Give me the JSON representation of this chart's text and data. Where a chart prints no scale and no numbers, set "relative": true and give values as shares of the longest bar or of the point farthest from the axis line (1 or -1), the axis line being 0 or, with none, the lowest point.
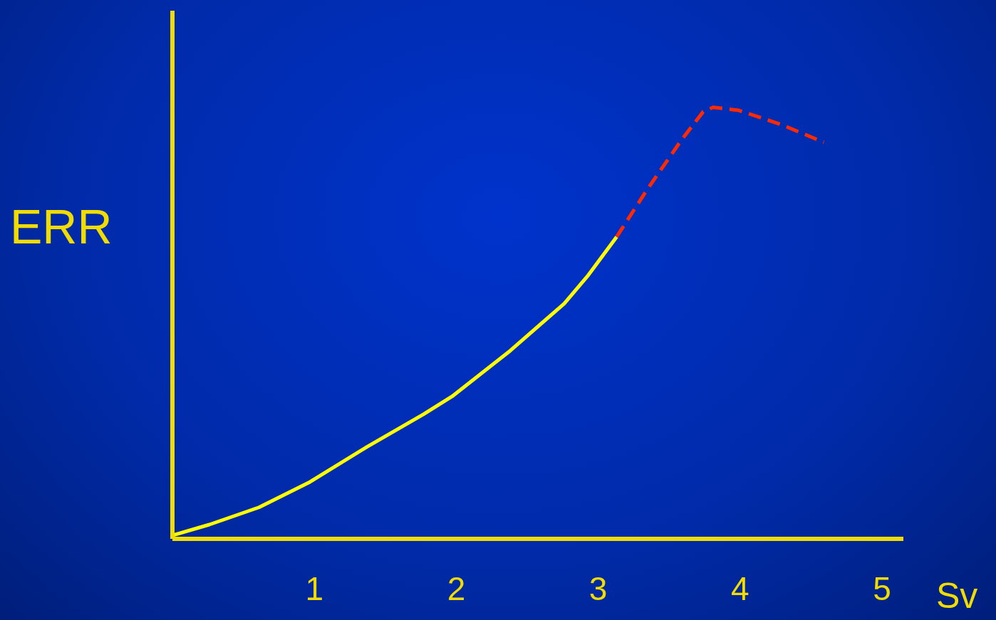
{
  "chart_data": {
    "type": "line",
    "xlabel": "Sv",
    "ylabel": "ERR",
    "relative": true,
    "xlim": [
      0,
      5.15
    ],
    "xticks": [
      1,
      2,
      3,
      4,
      5
    ],
    "tick_labels": "x",
    "grid": false,
    "legend": false,
    "marker": "none",
    "series": [
      {
        "color": "#ffff00",
        "line_style": "solid",
        "x": [
          0,
          0.26,
          0.61,
          0.97,
          1.37,
          1.77,
          1.97,
          2.38,
          2.76,
          2.93,
          3.13
        ],
        "values": [
          0.008,
          0.033,
          0.073,
          0.132,
          0.213,
          0.289,
          0.33,
          0.436,
          0.545,
          0.611,
          0.7
        ]
      },
      {
        "color": "#ff2a00",
        "line_style": "dashed",
        "x": [
          3.13,
          3.34,
          3.59,
          3.74,
          3.81,
          3.99,
          4.29,
          4.59
        ],
        "values": [
          0.7,
          0.807,
          0.926,
          0.99,
          1,
          0.993,
          0.96,
          0.919
        ]
      }
    ]
  }
}
